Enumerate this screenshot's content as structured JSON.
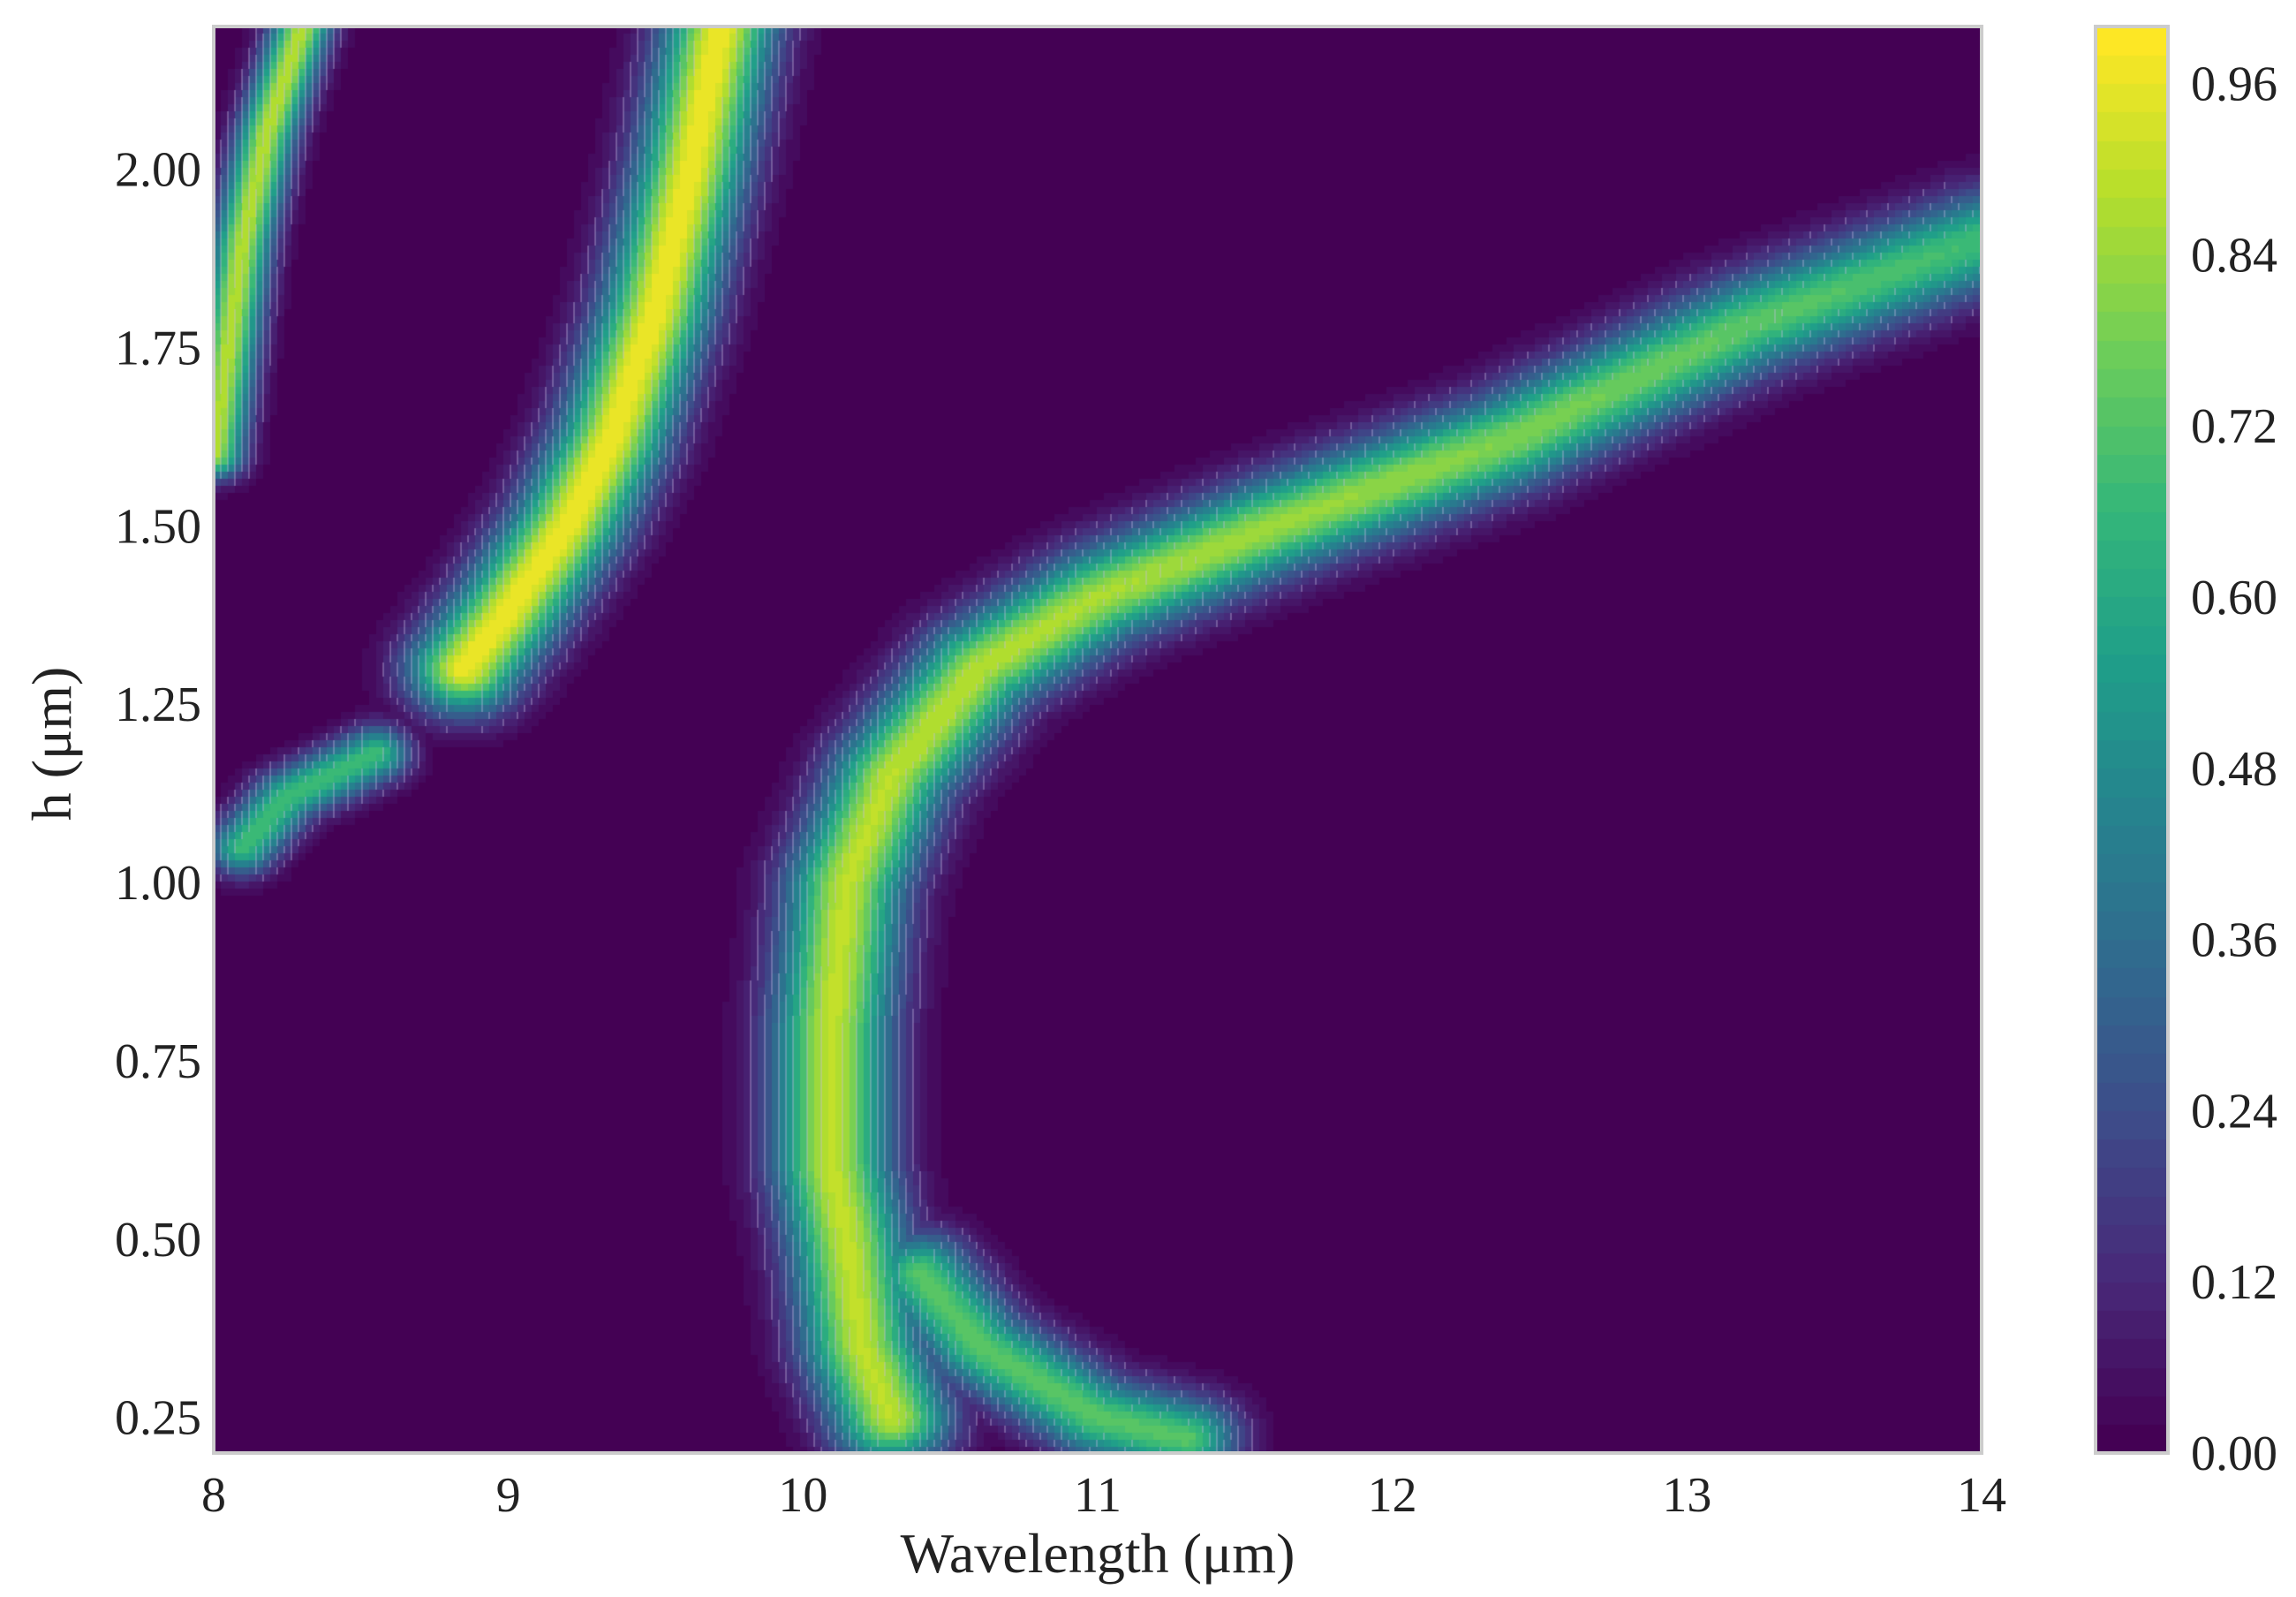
{
  "chart_data": {
    "type": "heatmap",
    "title": "",
    "xlabel": "Wavelength (μm)",
    "ylabel": "h (μm)",
    "xlim": [
      8,
      14
    ],
    "ylim": [
      0.2,
      2.2
    ],
    "xticks": [
      8,
      9,
      10,
      11,
      12,
      13,
      14
    ],
    "yticks": [
      0.25,
      0.5,
      0.75,
      1.0,
      1.25,
      1.5,
      1.75,
      2.0
    ],
    "xtick_labels": [
      "8",
      "9",
      "10",
      "11",
      "12",
      "13",
      "14"
    ],
    "ytick_labels": [
      "0.25",
      "0.50",
      "0.75",
      "1.00",
      "1.25",
      "1.50",
      "1.75",
      "2.00"
    ],
    "colormap": "viridis",
    "colorbar": {
      "range": [
        0.0,
        1.0
      ],
      "ticks": [
        0.0,
        0.12,
        0.24,
        0.36,
        0.48,
        0.6,
        0.72,
        0.84,
        0.96
      ],
      "tick_labels": [
        "0.00",
        "0.12",
        "0.24",
        "0.36",
        "0.48",
        "0.60",
        "0.72",
        "0.84",
        "0.96"
      ]
    },
    "grid": false,
    "contour_lines": true,
    "features": [
      {
        "name": "upper-left band",
        "peak": 1.0,
        "width": 0.13,
        "points": [
          [
            8.85,
            1.3
          ],
          [
            9.0,
            1.38
          ],
          [
            9.2,
            1.5
          ],
          [
            9.35,
            1.62
          ],
          [
            9.5,
            1.8
          ],
          [
            9.62,
            2.0
          ],
          [
            9.72,
            2.2
          ]
        ]
      },
      {
        "name": "main band",
        "peak": 1.0,
        "width": 0.14,
        "points": [
          [
            10.3,
            0.25
          ],
          [
            10.2,
            0.35
          ],
          [
            10.15,
            0.5
          ],
          [
            10.1,
            0.6
          ],
          [
            10.1,
            0.8
          ],
          [
            10.15,
            1.0
          ],
          [
            10.3,
            1.15
          ],
          [
            10.6,
            1.3
          ],
          [
            11.0,
            1.4
          ],
          [
            11.6,
            1.5
          ],
          [
            12.4,
            1.62
          ],
          [
            13.2,
            1.78
          ],
          [
            14.0,
            1.9
          ]
        ],
        "falloff": [
          [
            8.0,
            1.0
          ],
          [
            12.0,
            0.85
          ],
          [
            14.0,
            0.7
          ]
        ]
      },
      {
        "name": "lower tail",
        "peak": 0.75,
        "width": 0.12,
        "points": [
          [
            10.4,
            0.45
          ],
          [
            10.6,
            0.35
          ],
          [
            10.8,
            0.3
          ],
          [
            11.0,
            0.25
          ],
          [
            11.3,
            0.22
          ]
        ]
      },
      {
        "name": "left edge band",
        "peak": 0.9,
        "width": 0.07,
        "points": [
          [
            8.0,
            1.6
          ],
          [
            8.05,
            1.75
          ],
          [
            8.1,
            1.9
          ],
          [
            8.18,
            2.05
          ],
          [
            8.3,
            2.2
          ]
        ]
      },
      {
        "name": "small spot",
        "peak": 0.7,
        "width": 0.08,
        "points": [
          [
            8.1,
            1.05
          ],
          [
            8.25,
            1.12
          ],
          [
            8.55,
            1.18
          ]
        ]
      }
    ]
  }
}
